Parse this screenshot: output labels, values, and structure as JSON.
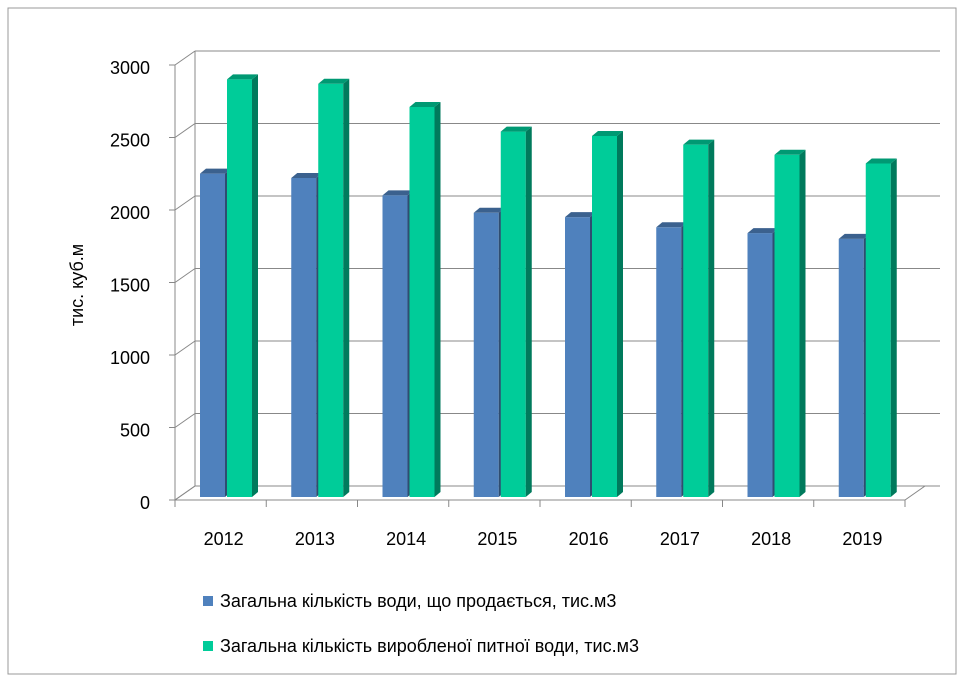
{
  "chart_data": {
    "type": "bar3d",
    "y_label": "тис. куб.м",
    "categories": [
      "2012",
      "2013",
      "2014",
      "2015",
      "2016",
      "2017",
      "2018",
      "2019"
    ],
    "series": [
      {
        "name": "Загальна кількість води, що продається, тис.м3",
        "color": "#4f81bd",
        "values": [
          2230,
          2200,
          2080,
          1960,
          1930,
          1860,
          1820,
          1780
        ]
      },
      {
        "name": "Загальна кількість виробленої питної води, тис.м3",
        "color": "#00cc99",
        "values": [
          2880,
          2850,
          2690,
          2520,
          2490,
          2430,
          2360,
          2300
        ]
      }
    ],
    "ylim": [
      0,
      3000
    ],
    "yticks": [
      0,
      500,
      1000,
      1500,
      2000,
      2500,
      3000
    ],
    "grid": true
  }
}
